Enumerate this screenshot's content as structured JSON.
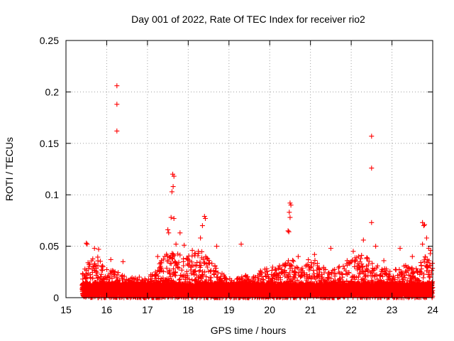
{
  "chart_data": {
    "type": "scatter",
    "title": "Day 001 of 2022, Rate Of TEC Index for receiver rio2",
    "xlabel": "GPS time / hours",
    "ylabel": "ROTI / TECUs",
    "xlim": [
      15,
      24
    ],
    "ylim": [
      0,
      0.25
    ],
    "xticks": [
      15,
      16,
      17,
      18,
      19,
      20,
      21,
      22,
      23,
      24
    ],
    "yticks": [
      0,
      0.05,
      0.1,
      0.15,
      0.2,
      0.25
    ],
    "ytick_labels": [
      "0",
      "0.05",
      "0.1",
      "0.15",
      "0.2",
      "0.25"
    ],
    "grid": true,
    "marker": "+",
    "series": [
      {
        "name": "ROTI",
        "color": "#ff0000",
        "points": [
          [
            16.25,
            0.206
          ],
          [
            16.25,
            0.188
          ],
          [
            16.25,
            0.162
          ],
          [
            17.62,
            0.12
          ],
          [
            17.65,
            0.118
          ],
          [
            17.63,
            0.108
          ],
          [
            17.6,
            0.103
          ],
          [
            17.58,
            0.078
          ],
          [
            17.65,
            0.077
          ],
          [
            17.5,
            0.066
          ],
          [
            17.52,
            0.063
          ],
          [
            17.8,
            0.063
          ],
          [
            18.4,
            0.079
          ],
          [
            18.42,
            0.077
          ],
          [
            18.35,
            0.07
          ],
          [
            18.3,
            0.058
          ],
          [
            19.3,
            0.052
          ],
          [
            20.5,
            0.092
          ],
          [
            20.52,
            0.09
          ],
          [
            20.48,
            0.083
          ],
          [
            20.5,
            0.078
          ],
          [
            20.45,
            0.065
          ],
          [
            20.47,
            0.064
          ],
          [
            22.5,
            0.157
          ],
          [
            22.5,
            0.126
          ],
          [
            22.5,
            0.073
          ],
          [
            22.3,
            0.056
          ],
          [
            22.6,
            0.05
          ],
          [
            23.75,
            0.073
          ],
          [
            23.8,
            0.071
          ],
          [
            23.78,
            0.07
          ],
          [
            23.85,
            0.058
          ],
          [
            23.75,
            0.052
          ],
          [
            15.5,
            0.053
          ],
          [
            15.52,
            0.052
          ],
          [
            15.7,
            0.048
          ],
          [
            15.8,
            0.047
          ],
          [
            16.1,
            0.037
          ],
          [
            16.4,
            0.035
          ],
          [
            16.8,
            0.02
          ],
          [
            17.25,
            0.04
          ],
          [
            17.7,
            0.052
          ],
          [
            17.9,
            0.051
          ],
          [
            18.1,
            0.046
          ],
          [
            18.7,
            0.05
          ],
          [
            20.7,
            0.04
          ],
          [
            21.1,
            0.042
          ],
          [
            21.5,
            0.048
          ],
          [
            21.9,
            0.036
          ],
          [
            22.05,
            0.045
          ],
          [
            22.4,
            0.038
          ],
          [
            22.8,
            0.036
          ],
          [
            23.2,
            0.048
          ],
          [
            23.5,
            0.04
          ],
          [
            23.9,
            0.048
          ],
          [
            23.95,
            0.046
          ]
        ],
        "dense_band": {
          "x_start": 15.4,
          "x_end": 24.0,
          "base_min": 0.0,
          "base_max": 0.012,
          "envelope": [
            [
              15.4,
              0.025
            ],
            [
              15.6,
              0.038
            ],
            [
              15.8,
              0.042
            ],
            [
              16.0,
              0.03
            ],
            [
              16.2,
              0.026
            ],
            [
              16.5,
              0.02
            ],
            [
              17.0,
              0.018
            ],
            [
              17.3,
              0.035
            ],
            [
              17.5,
              0.045
            ],
            [
              17.7,
              0.045
            ],
            [
              17.9,
              0.04
            ],
            [
              18.1,
              0.042
            ],
            [
              18.3,
              0.048
            ],
            [
              18.5,
              0.038
            ],
            [
              18.8,
              0.025
            ],
            [
              19.0,
              0.02
            ],
            [
              19.5,
              0.022
            ],
            [
              20.0,
              0.03
            ],
            [
              20.3,
              0.032
            ],
            [
              20.5,
              0.038
            ],
            [
              20.8,
              0.03
            ],
            [
              21.0,
              0.04
            ],
            [
              21.3,
              0.03
            ],
            [
              21.5,
              0.028
            ],
            [
              21.8,
              0.032
            ],
            [
              22.0,
              0.038
            ],
            [
              22.3,
              0.042
            ],
            [
              22.5,
              0.035
            ],
            [
              22.7,
              0.03
            ],
            [
              23.0,
              0.028
            ],
            [
              23.3,
              0.032
            ],
            [
              23.6,
              0.03
            ],
            [
              23.8,
              0.04
            ],
            [
              24.0,
              0.045
            ]
          ]
        }
      }
    ]
  }
}
